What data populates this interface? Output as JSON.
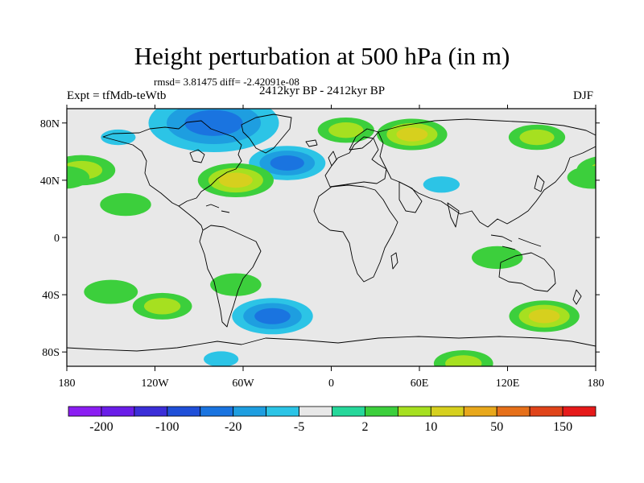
{
  "header": {
    "title": "Height perturbation at 500 hPa (in m)",
    "stats": "rmsd= 3.81475 diff= -2.42091e-08",
    "experiment": "Expt = tfMdb-teWtb",
    "period": "2412kyr BP - 2412kyr BP",
    "season": "DJF"
  },
  "axes": {
    "x_ticks": [
      "180",
      "120W",
      "60W",
      "0",
      "60E",
      "120E",
      "180"
    ],
    "x_tick_values": [
      -180,
      -120,
      -60,
      0,
      60,
      120,
      180
    ],
    "y_ticks": [
      "80N",
      "40N",
      "0",
      "40S",
      "80S"
    ],
    "y_tick_values": [
      80,
      40,
      0,
      -40,
      -80
    ],
    "lon_range": [
      -180,
      180
    ],
    "lat_range": [
      -90,
      90
    ]
  },
  "colorbar": {
    "colors": [
      "#8b1ef2",
      "#6a1de8",
      "#3b2ed8",
      "#1f4fd8",
      "#1a74e0",
      "#1e9ee0",
      "#2cc4e6",
      "#e8e8e8",
      "#26d79a",
      "#3ccf3c",
      "#a6e020",
      "#d6d01e",
      "#e8a81c",
      "#e6701a",
      "#e0441a",
      "#e61a1a"
    ],
    "labels": [
      "-200",
      "-100",
      "-20",
      "-5",
      "2",
      "10",
      "50",
      "150"
    ]
  },
  "chart_data": {
    "type": "heatmap",
    "field": "500 hPa height perturbation (m)",
    "anomalies": [
      {
        "lon": -95,
        "lat": 78,
        "value": -20
      },
      {
        "lon": -80,
        "lat": 80,
        "value": -45
      },
      {
        "lon": -30,
        "lat": 52,
        "value": -20
      },
      {
        "lon": 75,
        "lat": 37,
        "value": -6
      },
      {
        "lon": 55,
        "lat": 72,
        "value": 10
      },
      {
        "lon": 10,
        "lat": 75,
        "value": 5
      },
      {
        "lon": 140,
        "lat": 70,
        "value": 5
      },
      {
        "lon": -170,
        "lat": 47,
        "value": 9
      },
      {
        "lon": -65,
        "lat": 40,
        "value": 12
      },
      {
        "lon": -145,
        "lat": 70,
        "value": -5
      },
      {
        "lon": -40,
        "lat": -55,
        "value": -22
      },
      {
        "lon": 145,
        "lat": -55,
        "value": 10
      },
      {
        "lon": -75,
        "lat": -85,
        "value": -5
      },
      {
        "lon": 90,
        "lat": -88,
        "value": 6
      },
      {
        "lon": 20,
        "lat": -88,
        "value": -4
      },
      {
        "lon": -115,
        "lat": -48,
        "value": 6
      },
      {
        "lon": -160,
        "lat": -75,
        "value": -4
      },
      {
        "lon": 50,
        "lat": -42,
        "value": -3
      },
      {
        "lon": -150,
        "lat": -38,
        "value": 4
      },
      {
        "lon": -65,
        "lat": -33,
        "value": 3
      },
      {
        "lon": -140,
        "lat": 23,
        "value": 3
      },
      {
        "lon": 113,
        "lat": -14,
        "value": 3
      },
      {
        "lon": 150,
        "lat": -28,
        "value": -3
      },
      {
        "lon": 178,
        "lat": 42,
        "value": 3
      },
      {
        "lon": 178,
        "lat": -78,
        "value": -3
      }
    ]
  }
}
